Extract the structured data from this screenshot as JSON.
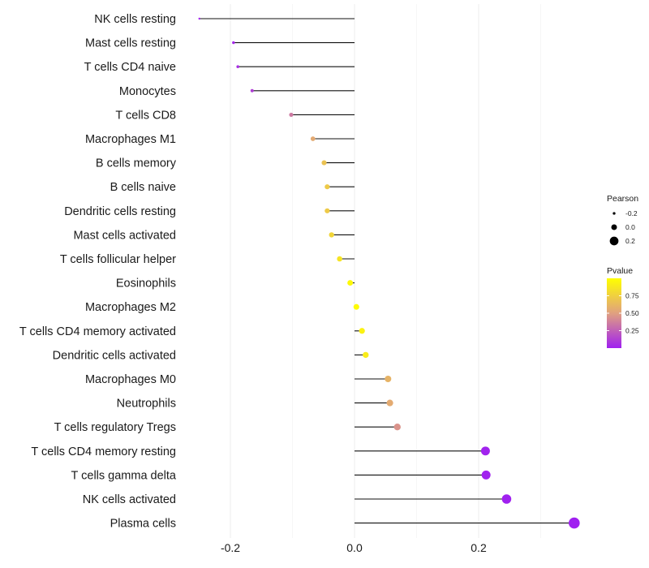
{
  "chart_data": {
    "type": "lollipop",
    "title": "",
    "xlabel": "",
    "ylabel": "",
    "xlim": [
      -0.3,
      0.38
    ],
    "xticks": [
      -0.2,
      0.0,
      0.2
    ],
    "xtick_labels": [
      "-0.2",
      "0.0",
      "0.2"
    ],
    "grid": true,
    "categories": [
      "NK cells resting",
      "Mast cells resting",
      "T cells CD4 naive",
      "Monocytes",
      "T cells CD8",
      "Macrophages M1",
      "B cells memory",
      "B cells naive",
      "Dendritic cells resting",
      "Mast cells activated",
      "T cells follicular helper",
      "Eosinophils",
      "Macrophages M2",
      "T cells CD4 memory activated",
      "Dendritic cells activated",
      "Macrophages M0",
      "Neutrophils",
      "T cells regulatory  Tregs",
      "T cells CD4 memory resting",
      "T cells gamma delta",
      "NK cells activated",
      "Plasma cells"
    ],
    "pearson": [
      -0.25,
      -0.195,
      -0.188,
      -0.165,
      -0.102,
      -0.067,
      -0.049,
      -0.044,
      -0.044,
      -0.037,
      -0.024,
      -0.007,
      0.003,
      0.012,
      0.018,
      0.054,
      0.057,
      0.069,
      0.211,
      0.212,
      0.245,
      0.354
    ],
    "pvalue": [
      0.01,
      0.03,
      0.06,
      0.12,
      0.35,
      0.55,
      0.68,
      0.72,
      0.72,
      0.78,
      0.86,
      0.97,
      0.98,
      0.93,
      0.9,
      0.6,
      0.56,
      0.45,
      0.01,
      0.01,
      0.003,
      0.0001
    ],
    "legend": {
      "size_title": "Pearson",
      "size_entries": [
        {
          "label": "-0.2",
          "value": -0.2
        },
        {
          "label": "0.0",
          "value": 0.0
        },
        {
          "label": "0.2",
          "value": 0.2
        }
      ],
      "color_title": "Pvalue",
      "color_ticks": [
        {
          "label": "0.75",
          "value": 0.75
        },
        {
          "label": "0.50",
          "value": 0.5
        },
        {
          "label": "0.25",
          "value": 0.25
        }
      ],
      "color_range": [
        0.0,
        1.0
      ],
      "color_low": "#a020f0",
      "color_mid": "#e0a080",
      "color_high": "#ffff00",
      "placement": "right"
    }
  }
}
